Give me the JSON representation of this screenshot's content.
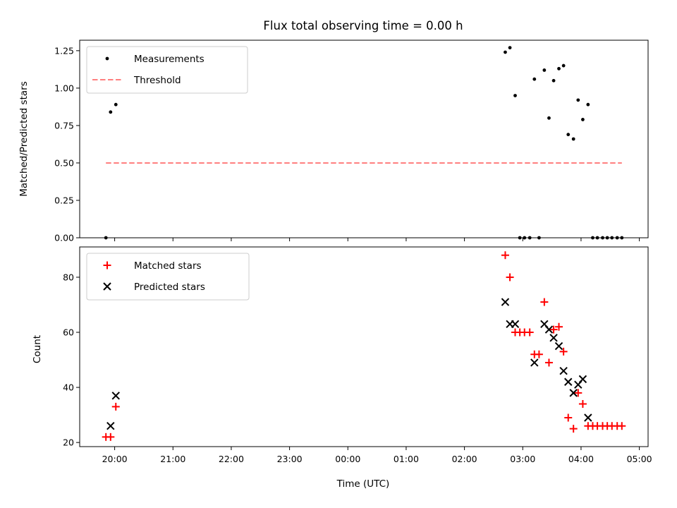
{
  "chart_data": [
    {
      "type": "scatter",
      "title": "Flux total observing time = 0.00 h",
      "xlabel": "",
      "ylabel": "Matched/Predicted stars",
      "x_unit": "hours since 00:00 UTC",
      "xlim": [
        -4.6,
        5.15
      ],
      "ylim": [
        0,
        1.32
      ],
      "yticks": [
        0.0,
        0.25,
        0.5,
        0.75,
        1.0,
        1.25
      ],
      "ytick_labels": [
        "0.00",
        "0.25",
        "0.50",
        "0.75",
        "1.00",
        "1.25"
      ],
      "xticks": [
        -4,
        -3,
        -2,
        -1,
        0,
        1,
        2,
        3,
        4,
        5
      ],
      "grid": false,
      "legend_position": "top-left",
      "series": [
        {
          "name": "Measurements",
          "marker": "dot",
          "color": "#000000",
          "points": [
            [
              -4.15,
              0.0
            ],
            [
              -4.07,
              0.84
            ],
            [
              -3.98,
              0.89
            ],
            [
              2.7,
              1.24
            ],
            [
              2.78,
              1.27
            ],
            [
              2.87,
              0.95
            ],
            [
              2.95,
              0.0
            ],
            [
              3.03,
              0.0
            ],
            [
              3.12,
              0.0
            ],
            [
              3.2,
              1.06
            ],
            [
              3.28,
              0.0
            ],
            [
              3.37,
              1.12
            ],
            [
              3.45,
              0.8
            ],
            [
              3.53,
              1.05
            ],
            [
              3.62,
              1.13
            ],
            [
              3.7,
              1.15
            ],
            [
              3.78,
              0.69
            ],
            [
              3.87,
              0.66
            ],
            [
              3.95,
              0.92
            ],
            [
              4.03,
              0.79
            ],
            [
              4.12,
              0.89
            ],
            [
              4.2,
              0.0
            ],
            [
              4.28,
              0.0
            ],
            [
              4.37,
              0.0
            ],
            [
              4.45,
              0.0
            ],
            [
              4.53,
              0.0
            ],
            [
              4.62,
              0.0
            ],
            [
              4.7,
              0.0
            ]
          ]
        },
        {
          "name": "Threshold",
          "marker": "dashed-line",
          "color": "#ff7f7f",
          "x": [
            -4.15,
            4.7
          ],
          "y": [
            0.5,
            0.5
          ]
        }
      ]
    },
    {
      "type": "scatter",
      "title": "",
      "xlabel": "Time (UTC)",
      "ylabel": "Count",
      "x_unit": "hours since 00:00 UTC",
      "xlim": [
        -4.6,
        5.15
      ],
      "ylim": [
        18.5,
        91
      ],
      "yticks": [
        20,
        40,
        60,
        80
      ],
      "ytick_labels": [
        "20",
        "40",
        "60",
        "80"
      ],
      "xticks": [
        -4,
        -3,
        -2,
        -1,
        0,
        1,
        2,
        3,
        4,
        5
      ],
      "xtick_labels": [
        "20:00",
        "21:00",
        "22:00",
        "23:00",
        "00:00",
        "01:00",
        "02:00",
        "03:00",
        "04:00",
        "05:00"
      ],
      "grid": false,
      "legend_position": "top-left",
      "series": [
        {
          "name": "Matched stars",
          "marker": "plus",
          "color": "#ff0000",
          "points": [
            [
              -4.15,
              22
            ],
            [
              -4.07,
              22
            ],
            [
              -3.98,
              33
            ],
            [
              2.7,
              88
            ],
            [
              2.78,
              80
            ],
            [
              2.87,
              60
            ],
            [
              2.95,
              60
            ],
            [
              3.03,
              60
            ],
            [
              3.12,
              60
            ],
            [
              3.2,
              52
            ],
            [
              3.28,
              52
            ],
            [
              3.37,
              71
            ],
            [
              3.45,
              49
            ],
            [
              3.53,
              61
            ],
            [
              3.62,
              62
            ],
            [
              3.7,
              53
            ],
            [
              3.78,
              29
            ],
            [
              3.87,
              25
            ],
            [
              3.95,
              38
            ],
            [
              4.03,
              34
            ],
            [
              4.12,
              26
            ],
            [
              4.2,
              26
            ],
            [
              4.28,
              26
            ],
            [
              4.37,
              26
            ],
            [
              4.45,
              26
            ],
            [
              4.53,
              26
            ],
            [
              4.62,
              26
            ],
            [
              4.7,
              26
            ]
          ]
        },
        {
          "name": "Predicted stars",
          "marker": "x",
          "color": "#000000",
          "points": [
            [
              -4.07,
              26
            ],
            [
              -3.98,
              37
            ],
            [
              2.7,
              71
            ],
            [
              2.78,
              63
            ],
            [
              2.87,
              63
            ],
            [
              3.2,
              49
            ],
            [
              3.37,
              63
            ],
            [
              3.45,
              61
            ],
            [
              3.53,
              58
            ],
            [
              3.62,
              55
            ],
            [
              3.7,
              46
            ],
            [
              3.78,
              42
            ],
            [
              3.87,
              38
            ],
            [
              3.95,
              41
            ],
            [
              4.03,
              43
            ],
            [
              4.12,
              29
            ]
          ]
        }
      ]
    }
  ]
}
